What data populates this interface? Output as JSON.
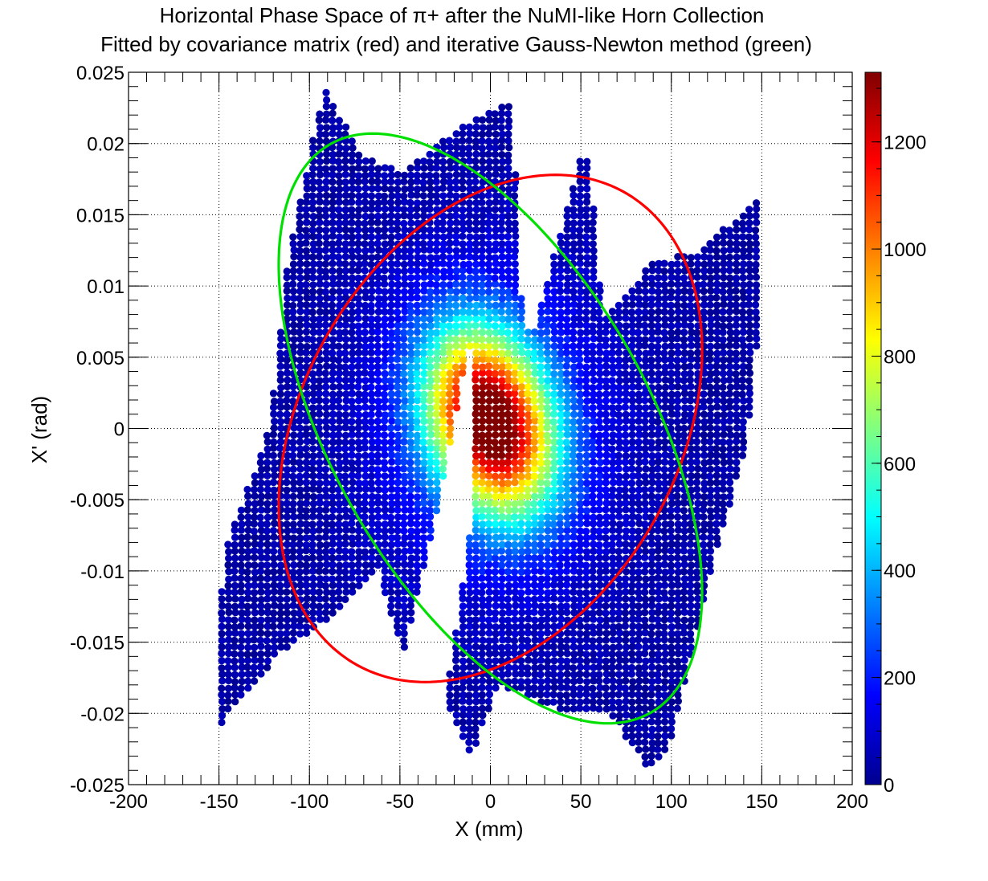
{
  "chart_data": {
    "type": "heatmap",
    "title": "Horizontal Phase Space of π+ after the NuMI-like Horn Collection",
    "subtitle": "Fitted by covariance matrix (red) and iterative Gauss-Newton method (green)",
    "xlabel": "X (mm)",
    "ylabel": "X' (rad)",
    "xlim": [
      -200,
      200
    ],
    "ylim": [
      -0.025,
      0.025
    ],
    "x_ticks": [
      "-200",
      "-150",
      "-100",
      "-50",
      "0",
      "50",
      "100",
      "150",
      "200"
    ],
    "y_ticks": [
      "0.025",
      "0.02",
      "0.015",
      "0.01",
      "0.005",
      "0",
      "-0.005",
      "-0.01",
      "-0.015",
      "-0.02",
      "-0.025"
    ],
    "colorbar": {
      "range": [
        0,
        1330
      ],
      "ticks": [
        "0",
        "200",
        "400",
        "600",
        "800",
        "1000",
        "1200"
      ],
      "palette": [
        "#00008f",
        "#0000ff",
        "#0080ff",
        "#00ffff",
        "#80ff80",
        "#ffff00",
        "#ff8000",
        "#ff0000",
        "#800000"
      ]
    },
    "grid": true,
    "density_peak": {
      "x": 0,
      "y": 0.0005
    },
    "ellipses": [
      {
        "name": "covariance matrix",
        "color": "#ff0000",
        "center": [
          0,
          0
        ],
        "x_extent": [
          -117,
          117
        ],
        "y_extent": [
          -0.0178,
          0.0178
        ],
        "tilt_points": [
          [
            36,
            0.0178
          ],
          [
            -36,
            -0.0178
          ]
        ]
      },
      {
        "name": "iterative Gauss-Newton",
        "color": "#00e000",
        "center": [
          0,
          0
        ],
        "x_extent": [
          -117,
          117
        ],
        "y_extent": [
          -0.0207,
          0.0207
        ],
        "tilt_points": [
          [
            -65,
            0.0207
          ],
          [
            65,
            -0.0207
          ]
        ]
      }
    ],
    "tick_values_x": [
      -200,
      -150,
      -100,
      -50,
      0,
      50,
      100,
      150,
      200
    ],
    "tick_values_y": [
      0.025,
      0.02,
      0.015,
      0.01,
      0.005,
      0,
      -0.005,
      -0.01,
      -0.015,
      -0.02,
      -0.025
    ],
    "tick_values_z": [
      0,
      200,
      400,
      600,
      800,
      1000,
      1200
    ]
  }
}
